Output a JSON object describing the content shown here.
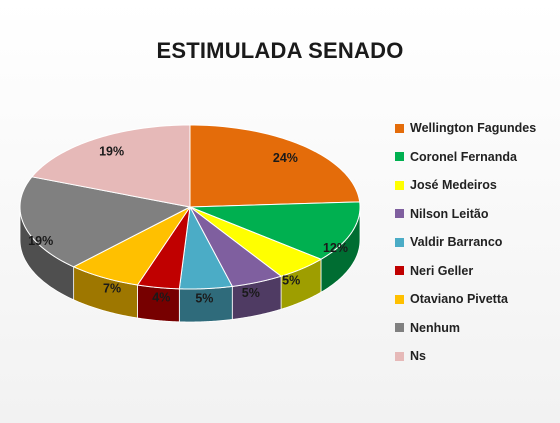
{
  "chart_data": {
    "type": "pie",
    "title": "ESTIMULADA SENADO",
    "slices": [
      {
        "label": "Wellington Fagundes",
        "value": 24,
        "display": "24%",
        "color": "#E46C0A"
      },
      {
        "label": "Coronel Fernanda",
        "value": 12,
        "display": "12%",
        "color": "#00B050"
      },
      {
        "label": "José Medeiros",
        "value": 5,
        "display": "5%",
        "color": "#FFFF00"
      },
      {
        "label": "Nilson Leitão",
        "value": 5,
        "display": "5%",
        "color": "#7F5F9F"
      },
      {
        "label": "Valdir Barranco",
        "value": 5,
        "display": "5%",
        "color": "#4BACC6"
      },
      {
        "label": "Neri Geller",
        "value": 4,
        "display": "4%",
        "color": "#C00000"
      },
      {
        "label": "Otaviano Pivetta",
        "value": 7,
        "display": "7%",
        "color": "#FFC000"
      },
      {
        "label": "Nenhum",
        "value": 19,
        "display": "19%",
        "color": "#808080"
      },
      {
        "label": "Ns",
        "value": 19,
        "display": "19%",
        "color": "#E6B9B8"
      }
    ],
    "legend_position": "right"
  }
}
